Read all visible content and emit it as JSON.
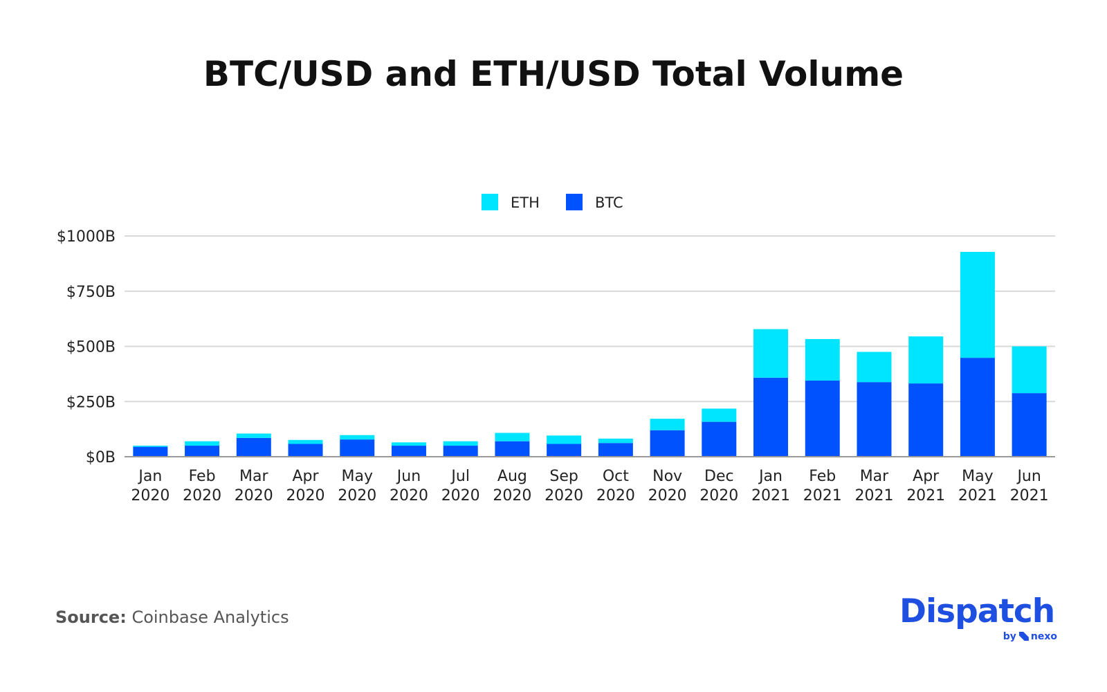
{
  "title": "BTC/USD and ETH/USD Total Volume",
  "source": {
    "label": "Source:",
    "text": "Coinbase Analytics"
  },
  "brand": {
    "name": "Dispatch",
    "by": "by",
    "partner": "nexo"
  },
  "colors": {
    "eth": "#00e5ff",
    "btc": "#0052ff",
    "grid": "#d9d9d9",
    "axis": "#999999"
  },
  "chart_data": {
    "type": "bar",
    "stacked": true,
    "legend_position": "top-center",
    "grid": true,
    "ylim": [
      0,
      1000
    ],
    "yticks": [
      0,
      250,
      500,
      750,
      1000
    ],
    "ytick_labels": [
      "$0B",
      "$250B",
      "$500B",
      "$750B",
      "$1000B"
    ],
    "xlabel": "",
    "ylabel": "",
    "categories": [
      [
        "Jan",
        "2020"
      ],
      [
        "Feb",
        "2020"
      ],
      [
        "Mar",
        "2020"
      ],
      [
        "Apr",
        "2020"
      ],
      [
        "May",
        "2020"
      ],
      [
        "Jun",
        "2020"
      ],
      [
        "Jul",
        "2020"
      ],
      [
        "Aug",
        "2020"
      ],
      [
        "Sep",
        "2020"
      ],
      [
        "Oct",
        "2020"
      ],
      [
        "Nov",
        "2020"
      ],
      [
        "Dec",
        "2020"
      ],
      [
        "Jan",
        "2021"
      ],
      [
        "Feb",
        "2021"
      ],
      [
        "Mar",
        "2021"
      ],
      [
        "Apr",
        "2021"
      ],
      [
        "May",
        "2021"
      ],
      [
        "Jun",
        "2021"
      ]
    ],
    "series": [
      {
        "name": "BTC",
        "color": "#0052ff",
        "values": [
          45,
          50,
          85,
          58,
          78,
          50,
          50,
          70,
          58,
          62,
          120,
          158,
          358,
          345,
          338,
          332,
          448,
          288
        ]
      },
      {
        "name": "ETH",
        "color": "#00e5ff",
        "values": [
          5,
          20,
          20,
          18,
          20,
          15,
          20,
          38,
          38,
          20,
          52,
          60,
          220,
          188,
          137,
          213,
          480,
          212
        ]
      }
    ],
    "legend_order": [
      "ETH",
      "BTC"
    ]
  }
}
